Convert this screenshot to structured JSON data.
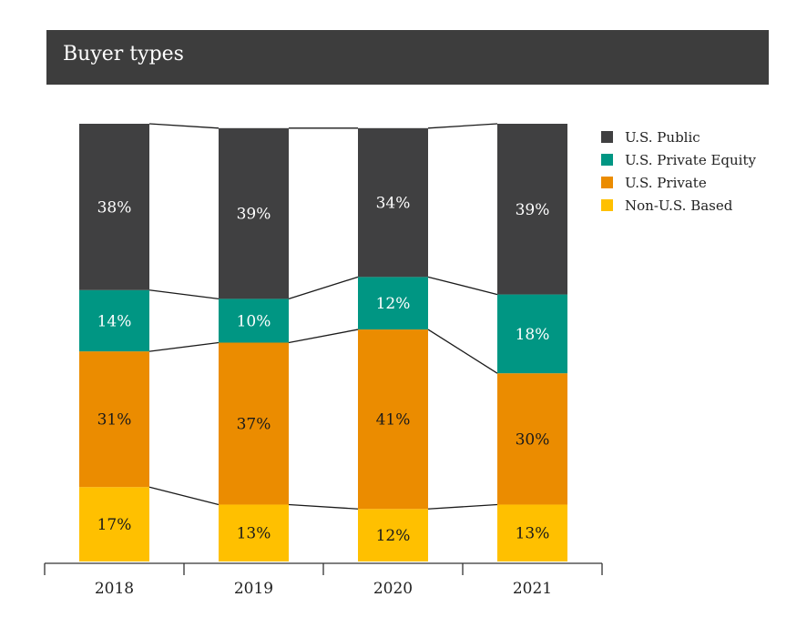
{
  "header": {
    "title": "Buyer types"
  },
  "colors": {
    "header_bg": "#3d3d3d",
    "connector": "#1a1a1a"
  },
  "chart_data": {
    "type": "bar",
    "stacked": true,
    "title": "Buyer types",
    "xlabel": "",
    "ylabel": "",
    "ylim": [
      0,
      100
    ],
    "grid": false,
    "legend_position": "right",
    "categories": [
      "2018",
      "2019",
      "2020",
      "2021"
    ],
    "series": [
      {
        "name": "Non-U.S. Based",
        "color": "#ffc000",
        "text_color": "#1a1a1a",
        "values": [
          17,
          13,
          12,
          13
        ],
        "labels": [
          "17%",
          "13%",
          "12%",
          "13%"
        ]
      },
      {
        "name": "U.S. Private",
        "color": "#eb8c00",
        "text_color": "#1a1a1a",
        "values": [
          31,
          37,
          41,
          30
        ],
        "labels": [
          "31%",
          "37%",
          "41%",
          "30%"
        ]
      },
      {
        "name": "U.S. Private Equity",
        "color": "#009683",
        "text_color": "#ffffff",
        "values": [
          14,
          10,
          12,
          18
        ],
        "labels": [
          "14%",
          "10%",
          "12%",
          "18%"
        ]
      },
      {
        "name": "U.S. Public",
        "color": "#404041",
        "text_color": "#ffffff",
        "values": [
          38,
          39,
          34,
          39
        ],
        "labels": [
          "38%",
          "39%",
          "34%",
          "39%"
        ]
      }
    ],
    "legend_order": [
      "U.S. Public",
      "U.S. Private Equity",
      "U.S. Private",
      "Non-U.S. Based"
    ]
  }
}
